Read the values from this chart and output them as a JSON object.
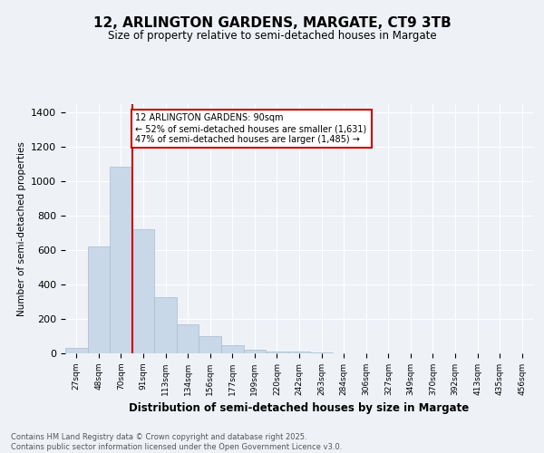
{
  "title_line1": "12, ARLINGTON GARDENS, MARGATE, CT9 3TB",
  "title_line2": "Size of property relative to semi-detached houses in Margate",
  "xlabel": "Distribution of semi-detached houses by size in Margate",
  "ylabel": "Number of semi-detached properties",
  "categories": [
    "27sqm",
    "48sqm",
    "70sqm",
    "91sqm",
    "113sqm",
    "134sqm",
    "156sqm",
    "177sqm",
    "199sqm",
    "220sqm",
    "242sqm",
    "263sqm",
    "284sqm",
    "306sqm",
    "327sqm",
    "349sqm",
    "370sqm",
    "392sqm",
    "413sqm",
    "435sqm",
    "456sqm"
  ],
  "values": [
    30,
    620,
    1085,
    720,
    325,
    170,
    100,
    45,
    20,
    10,
    8,
    5,
    0,
    0,
    0,
    0,
    0,
    0,
    0,
    0,
    0
  ],
  "bar_color": "#c8d8e8",
  "bar_edgecolor": "#aabbcc",
  "vline_color": "#cc0000",
  "annotation_text": "12 ARLINGTON GARDENS: 90sqm\n← 52% of semi-detached houses are smaller (1,631)\n47% of semi-detached houses are larger (1,485) →",
  "annotation_box_color": "#ffffff",
  "annotation_box_edgecolor": "#cc0000",
  "footer_line1": "Contains HM Land Registry data © Crown copyright and database right 2025.",
  "footer_line2": "Contains public sector information licensed under the Open Government Licence v3.0.",
  "background_color": "#eef2f7",
  "ylim": [
    0,
    1450
  ],
  "yticks": [
    0,
    200,
    400,
    600,
    800,
    1000,
    1200,
    1400
  ]
}
